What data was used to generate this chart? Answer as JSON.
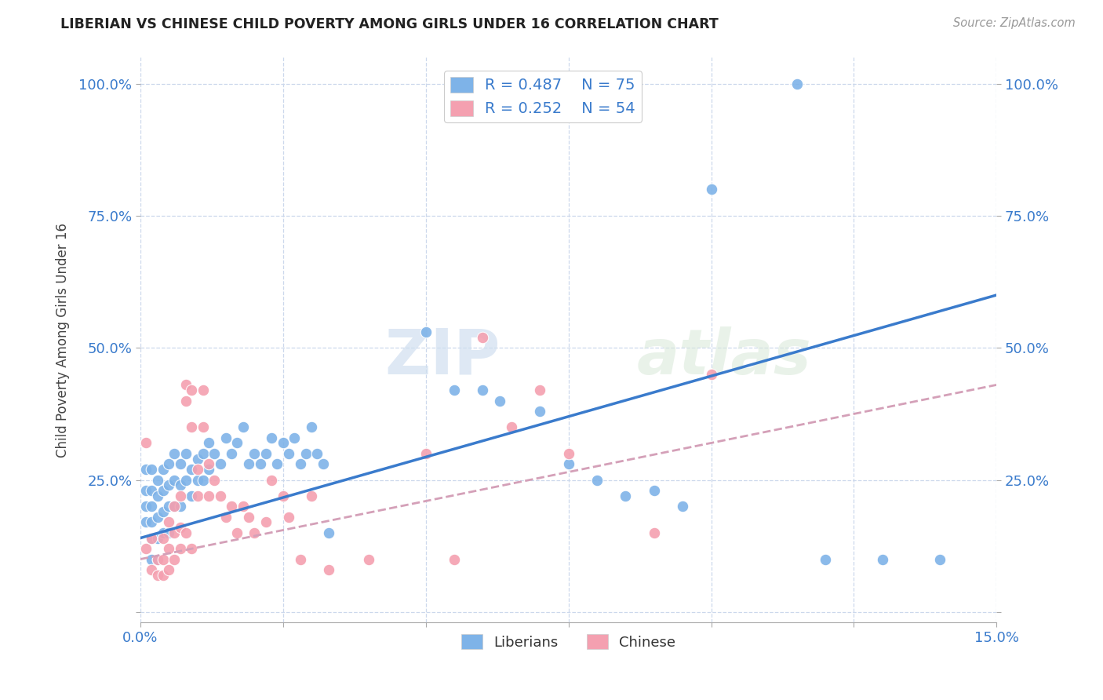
{
  "title": "LIBERIAN VS CHINESE CHILD POVERTY AMONG GIRLS UNDER 16 CORRELATION CHART",
  "source": "Source: ZipAtlas.com",
  "ylabel": "Child Poverty Among Girls Under 16",
  "xlim": [
    0.0,
    0.15
  ],
  "ylim": [
    -0.02,
    1.05
  ],
  "xticks": [
    0.0,
    0.025,
    0.05,
    0.075,
    0.1,
    0.125,
    0.15
  ],
  "xticklabels": [
    "0.0%",
    "",
    "",
    "",
    "",
    "",
    "15.0%"
  ],
  "yticks": [
    0.0,
    0.25,
    0.5,
    0.75,
    1.0
  ],
  "yticklabels_left": [
    "",
    "25.0%",
    "50.0%",
    "75.0%",
    "100.0%"
  ],
  "yticklabels_right": [
    "",
    "25.0%",
    "50.0%",
    "75.0%",
    "100.0%"
  ],
  "liberian_color": "#7eb3e8",
  "chinese_color": "#f4a0b0",
  "liberian_R": 0.487,
  "liberian_N": 75,
  "chinese_R": 0.252,
  "chinese_N": 54,
  "liberian_line_color": "#3a7bcc",
  "chinese_line_color": "#d4a0b8",
  "watermark_text": "ZIP",
  "watermark_text2": "atlas",
  "background_color": "#ffffff",
  "grid_color": "#ccd8ec",
  "liberian_scatter": [
    [
      0.001,
      0.27
    ],
    [
      0.001,
      0.23
    ],
    [
      0.001,
      0.2
    ],
    [
      0.001,
      0.17
    ],
    [
      0.002,
      0.27
    ],
    [
      0.002,
      0.23
    ],
    [
      0.002,
      0.2
    ],
    [
      0.002,
      0.17
    ],
    [
      0.002,
      0.14
    ],
    [
      0.002,
      0.1
    ],
    [
      0.003,
      0.25
    ],
    [
      0.003,
      0.22
    ],
    [
      0.003,
      0.18
    ],
    [
      0.003,
      0.14
    ],
    [
      0.003,
      0.1
    ],
    [
      0.004,
      0.27
    ],
    [
      0.004,
      0.23
    ],
    [
      0.004,
      0.19
    ],
    [
      0.004,
      0.15
    ],
    [
      0.005,
      0.28
    ],
    [
      0.005,
      0.24
    ],
    [
      0.005,
      0.2
    ],
    [
      0.005,
      0.15
    ],
    [
      0.006,
      0.3
    ],
    [
      0.006,
      0.25
    ],
    [
      0.006,
      0.2
    ],
    [
      0.007,
      0.28
    ],
    [
      0.007,
      0.24
    ],
    [
      0.007,
      0.2
    ],
    [
      0.008,
      0.3
    ],
    [
      0.008,
      0.25
    ],
    [
      0.009,
      0.27
    ],
    [
      0.009,
      0.22
    ],
    [
      0.01,
      0.29
    ],
    [
      0.01,
      0.25
    ],
    [
      0.011,
      0.3
    ],
    [
      0.011,
      0.25
    ],
    [
      0.012,
      0.32
    ],
    [
      0.012,
      0.27
    ],
    [
      0.013,
      0.3
    ],
    [
      0.014,
      0.28
    ],
    [
      0.015,
      0.33
    ],
    [
      0.016,
      0.3
    ],
    [
      0.017,
      0.32
    ],
    [
      0.018,
      0.35
    ],
    [
      0.019,
      0.28
    ],
    [
      0.02,
      0.3
    ],
    [
      0.021,
      0.28
    ],
    [
      0.022,
      0.3
    ],
    [
      0.023,
      0.33
    ],
    [
      0.024,
      0.28
    ],
    [
      0.025,
      0.32
    ],
    [
      0.026,
      0.3
    ],
    [
      0.027,
      0.33
    ],
    [
      0.028,
      0.28
    ],
    [
      0.029,
      0.3
    ],
    [
      0.03,
      0.35
    ],
    [
      0.031,
      0.3
    ],
    [
      0.032,
      0.28
    ],
    [
      0.033,
      0.15
    ],
    [
      0.05,
      0.53
    ],
    [
      0.055,
      0.42
    ],
    [
      0.06,
      0.42
    ],
    [
      0.063,
      0.4
    ],
    [
      0.07,
      0.38
    ],
    [
      0.075,
      0.28
    ],
    [
      0.08,
      0.25
    ],
    [
      0.085,
      0.22
    ],
    [
      0.09,
      0.23
    ],
    [
      0.095,
      0.2
    ],
    [
      0.1,
      0.8
    ],
    [
      0.115,
      1.0
    ],
    [
      0.12,
      0.1
    ],
    [
      0.13,
      0.1
    ],
    [
      0.14,
      0.1
    ]
  ],
  "chinese_scatter": [
    [
      0.001,
      0.32
    ],
    [
      0.001,
      0.12
    ],
    [
      0.002,
      0.08
    ],
    [
      0.002,
      0.14
    ],
    [
      0.003,
      0.1
    ],
    [
      0.003,
      0.07
    ],
    [
      0.004,
      0.14
    ],
    [
      0.004,
      0.1
    ],
    [
      0.004,
      0.07
    ],
    [
      0.005,
      0.17
    ],
    [
      0.005,
      0.12
    ],
    [
      0.005,
      0.08
    ],
    [
      0.006,
      0.2
    ],
    [
      0.006,
      0.15
    ],
    [
      0.006,
      0.1
    ],
    [
      0.007,
      0.22
    ],
    [
      0.007,
      0.16
    ],
    [
      0.007,
      0.12
    ],
    [
      0.008,
      0.43
    ],
    [
      0.008,
      0.4
    ],
    [
      0.008,
      0.15
    ],
    [
      0.009,
      0.42
    ],
    [
      0.009,
      0.35
    ],
    [
      0.009,
      0.12
    ],
    [
      0.01,
      0.27
    ],
    [
      0.01,
      0.22
    ],
    [
      0.011,
      0.42
    ],
    [
      0.011,
      0.35
    ],
    [
      0.012,
      0.28
    ],
    [
      0.012,
      0.22
    ],
    [
      0.013,
      0.25
    ],
    [
      0.014,
      0.22
    ],
    [
      0.015,
      0.18
    ],
    [
      0.016,
      0.2
    ],
    [
      0.017,
      0.15
    ],
    [
      0.018,
      0.2
    ],
    [
      0.019,
      0.18
    ],
    [
      0.02,
      0.15
    ],
    [
      0.022,
      0.17
    ],
    [
      0.023,
      0.25
    ],
    [
      0.025,
      0.22
    ],
    [
      0.026,
      0.18
    ],
    [
      0.028,
      0.1
    ],
    [
      0.03,
      0.22
    ],
    [
      0.033,
      0.08
    ],
    [
      0.04,
      0.1
    ],
    [
      0.05,
      0.3
    ],
    [
      0.055,
      0.1
    ],
    [
      0.06,
      0.52
    ],
    [
      0.065,
      0.35
    ],
    [
      0.07,
      0.42
    ],
    [
      0.075,
      0.3
    ],
    [
      0.09,
      0.15
    ],
    [
      0.1,
      0.45
    ]
  ],
  "lib_line_x": [
    0.0,
    0.15
  ],
  "lib_line_y": [
    0.14,
    0.6
  ],
  "chi_line_x": [
    0.0,
    0.15
  ],
  "chi_line_y": [
    0.1,
    0.43
  ]
}
